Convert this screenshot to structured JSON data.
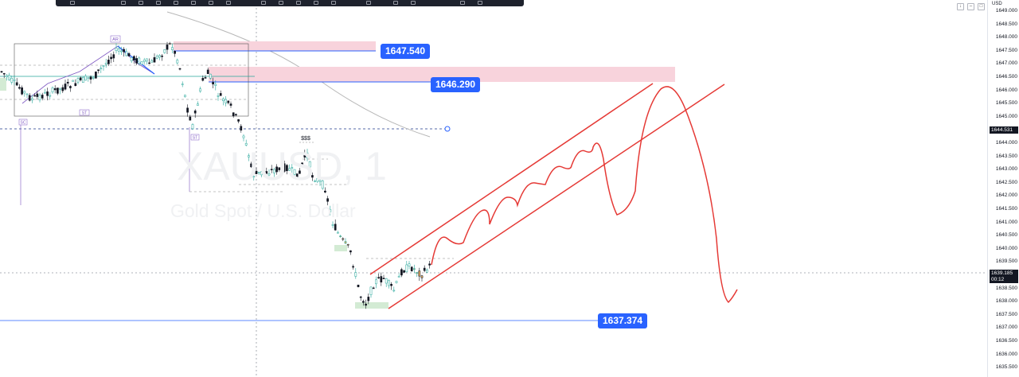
{
  "symbol": {
    "ticker_watermark": "XAUUSD, 1",
    "name_watermark": "Gold Spot / U.S. Dollar"
  },
  "axis": {
    "currency": "USD",
    "ticks": [
      "1649.000",
      "1648.500",
      "1648.000",
      "1647.500",
      "1647.000",
      "1646.500",
      "1646.000",
      "1645.500",
      "1645.000",
      "1644.500",
      "1644.000",
      "1643.500",
      "1643.000",
      "1642.500",
      "1642.000",
      "1641.500",
      "1641.000",
      "1640.500",
      "1640.000",
      "1639.500",
      "1639.000",
      "1638.500",
      "1638.000",
      "1637.500",
      "1637.000",
      "1636.500",
      "1636.000",
      "1635.500"
    ],
    "tag_high": "1644.531",
    "tag_current": "1639.185",
    "tag_countdown": "00:12"
  },
  "levels": {
    "top": "1647.540",
    "mid": "1646.290",
    "low": "1637.374"
  },
  "annotations": {
    "ar": "AR",
    "sc": "SC",
    "st1": "ST",
    "st2": "ST",
    "dollars": "$$$"
  },
  "colors": {
    "up": "#26a69a",
    "down": "#131722",
    "highlight": "#f7d7df",
    "arrow": "#e53935",
    "level": "#2962ff",
    "fill_orange": "#d9a65d"
  }
}
